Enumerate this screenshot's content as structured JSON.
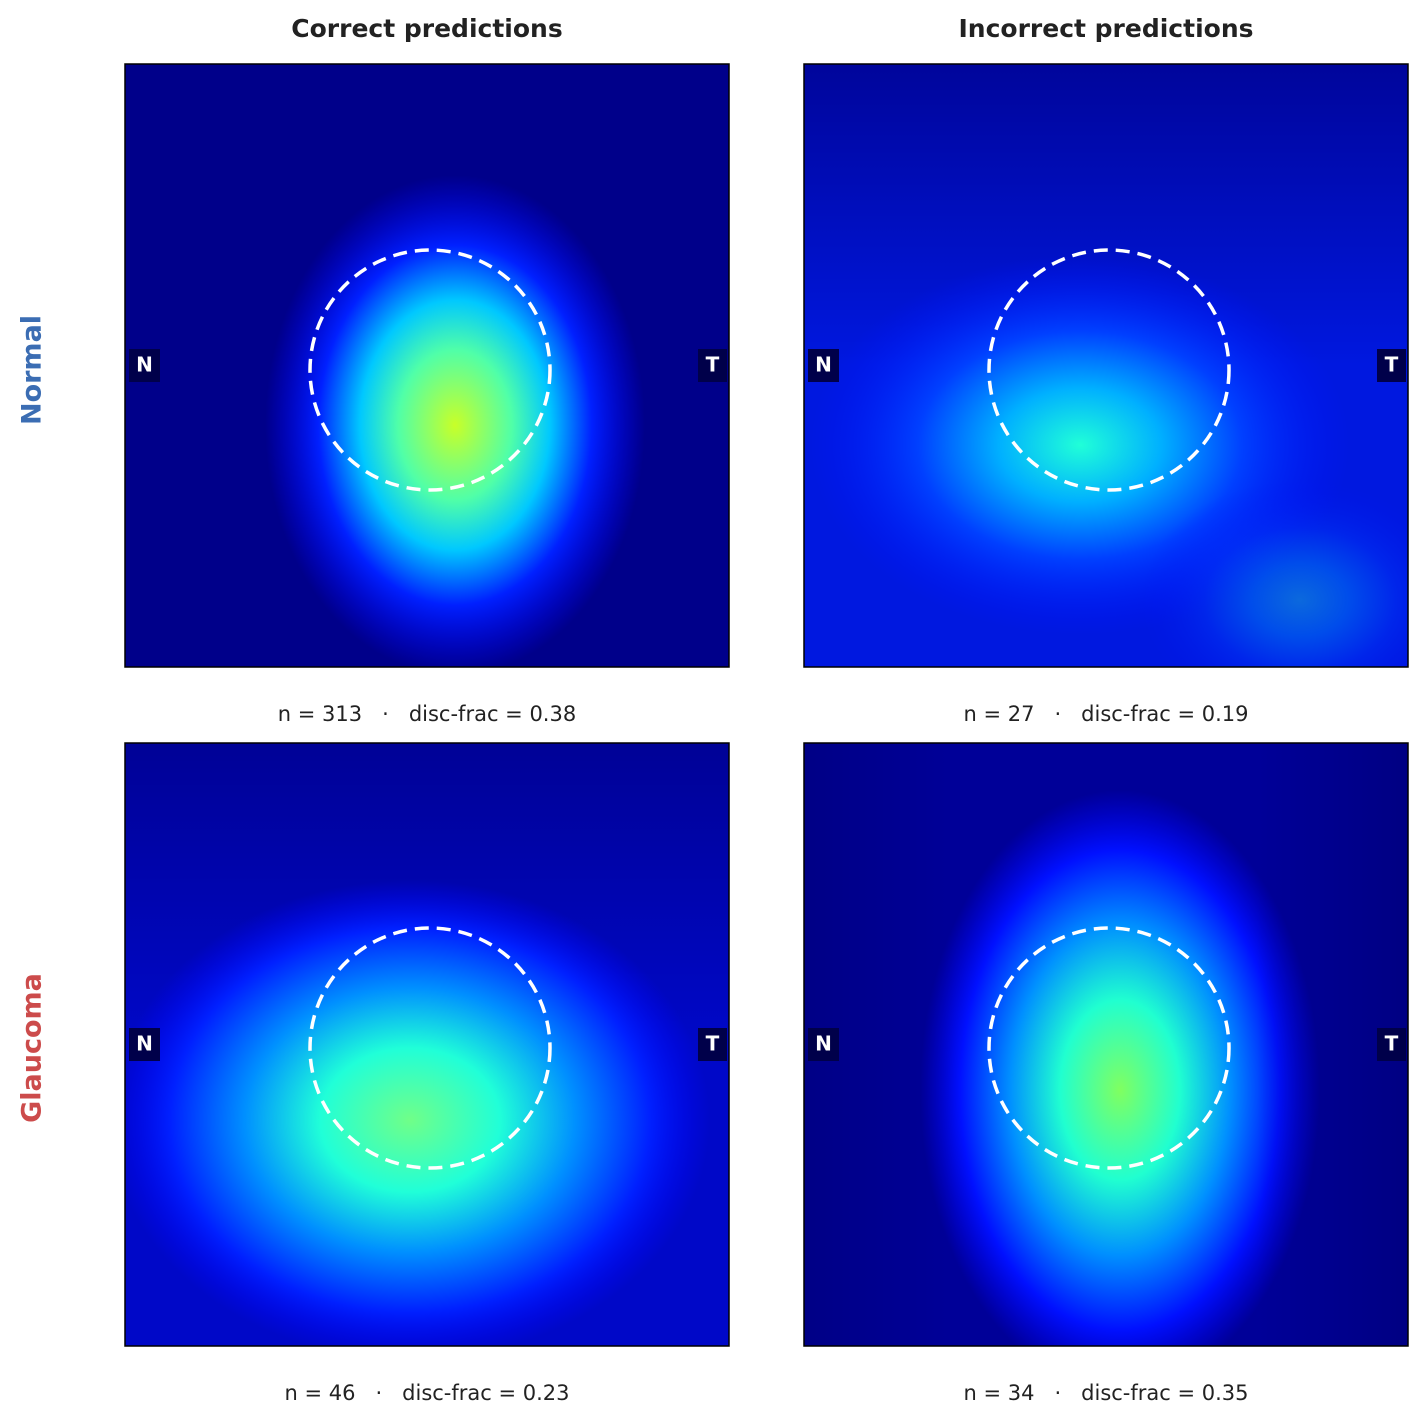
{
  "columns": [
    "Correct predictions",
    "Incorrect predictions"
  ],
  "rows": [
    "Normal",
    "Glaucoma"
  ],
  "orientation": {
    "left": "N",
    "right": "T"
  },
  "panels": [
    [
      "n = 313   ·   disc-frac = 0.38",
      "n = 27   ·   disc-frac = 0.19"
    ],
    [
      "n = 46   ·   disc-frac = 0.23",
      "n = 34   ·   disc-frac = 0.35"
    ]
  ]
}
